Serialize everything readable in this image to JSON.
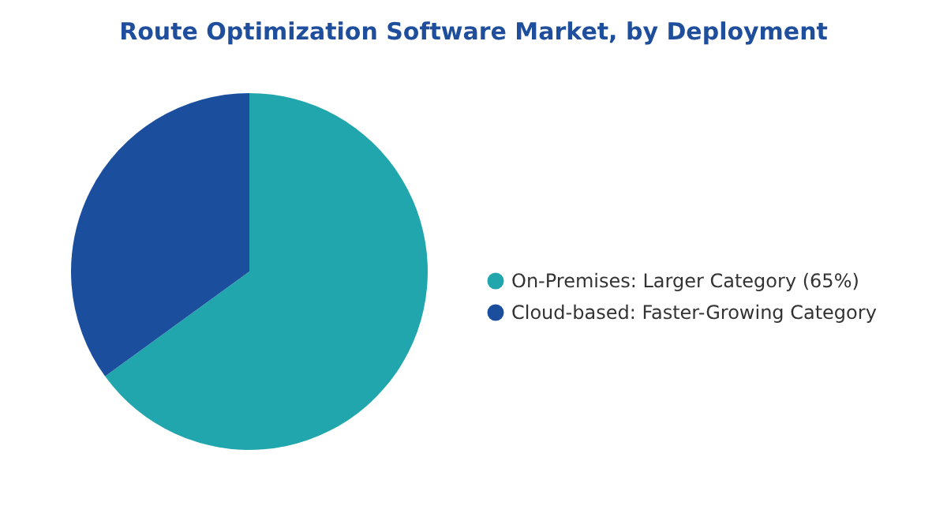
{
  "chart_data": {
    "type": "pie",
    "title": "Route Optimization Software Market, by Deployment",
    "categories": [
      "On-Premises:  Larger Category (65%)",
      "Cloud-based:  Faster-Growing Category"
    ],
    "values": [
      65,
      35
    ],
    "colors": [
      "#21a6ae",
      "#1b4f9e"
    ],
    "legend": "right"
  }
}
